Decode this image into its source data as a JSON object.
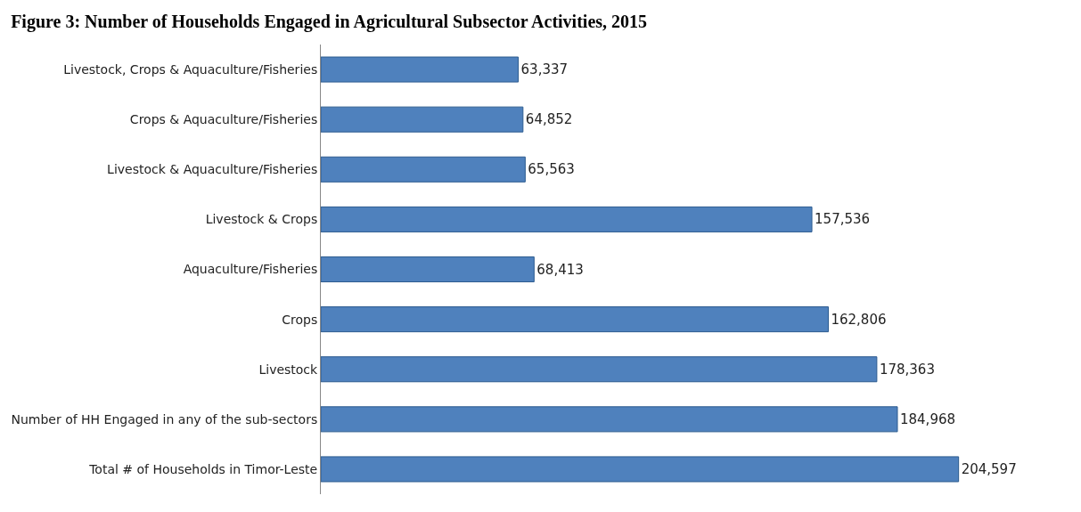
{
  "chart_data": {
    "type": "bar",
    "orientation": "horizontal",
    "title": "Figure 3: Number of Households Engaged in Agricultural Subsector Activities, 2015",
    "categories": [
      "Livestock, Crops & Aquaculture/Fisheries",
      "Crops & Aquaculture/Fisheries",
      "Livestock & Aquaculture/Fisheries",
      "Livestock & Crops",
      "Aquaculture/Fisheries",
      "Crops",
      "Livestock",
      "Number of HH Engaged in any of the sub-sectors",
      "Total # of Households in Timor-Leste"
    ],
    "values": [
      63337,
      64852,
      65563,
      157536,
      68413,
      162806,
      178363,
      184968,
      204597
    ],
    "value_labels": [
      "63,337",
      "64,852",
      "65,563",
      "157,536",
      "68,413",
      "162,806",
      "178,363",
      "184,968",
      "204,597"
    ],
    "color": "#4f81bd"
  }
}
